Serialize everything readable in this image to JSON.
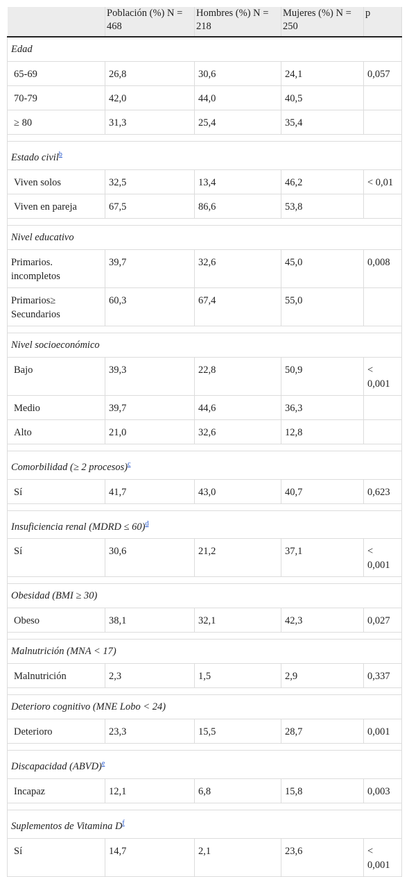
{
  "headers": [
    "",
    "Población (%) N = 468",
    "Hombres (%) N = 218",
    "Mujeres (%) N = 250",
    "p"
  ],
  "groups": [
    {
      "title": "Edad",
      "sup": "",
      "rows": [
        {
          "label": "65-69",
          "values": [
            "26,8",
            "30,6",
            "24,1",
            "0,057"
          ]
        },
        {
          "label": "70-79",
          "values": [
            "42,0",
            "44,0",
            "40,5",
            ""
          ]
        },
        {
          "label": "≥ 80",
          "values": [
            "31,3",
            "25,4",
            "35,4",
            ""
          ]
        }
      ]
    },
    {
      "title": "Estado civil",
      "sup": "b",
      "rows": [
        {
          "label": "Viven solos",
          "values": [
            "32,5",
            "13,4",
            "46,2",
            "< 0,01"
          ]
        },
        {
          "label": "Viven en pareja",
          "values": [
            "67,5",
            "86,6",
            "53,8",
            ""
          ]
        }
      ]
    },
    {
      "title": "Nivel educativo",
      "sup": "",
      "rows": [
        {
          "label": "Primarios. incompletos",
          "values": [
            "39,7",
            "32,6",
            "45,0",
            "0,008"
          ]
        },
        {
          "label": "Primarios≥ Secundarios",
          "values": [
            "60,3",
            "67,4",
            "55,0",
            ""
          ]
        }
      ]
    },
    {
      "title": "Nivel socioeconómico",
      "sup": "",
      "rows": [
        {
          "label": "Bajo",
          "values": [
            "39,3",
            "22,8",
            "50,9",
            "< 0,001"
          ]
        },
        {
          "label": "Medio",
          "values": [
            "39,7",
            "44,6",
            "36,3",
            ""
          ]
        },
        {
          "label": "Alto",
          "values": [
            "21,0",
            "32,6",
            "12,8",
            ""
          ]
        }
      ]
    },
    {
      "title": "Comorbilidad (≥ 2 procesos)",
      "sup": "c",
      "rows": [
        {
          "label": "Sí",
          "values": [
            "41,7",
            "43,0",
            "40,7",
            "0,623"
          ]
        }
      ]
    },
    {
      "title": "Insuficiencia renal (MDRD ≤ 60)",
      "sup": "d",
      "rows": [
        {
          "label": "Sí",
          "values": [
            "30,6",
            "21,2",
            "37,1",
            "< 0,001"
          ]
        }
      ]
    },
    {
      "title": "Obesidad (BMI ≥ 30)",
      "sup": "",
      "rows": [
        {
          "label": "Obeso",
          "values": [
            "38,1",
            "32,1",
            "42,3",
            "0,027"
          ]
        }
      ]
    },
    {
      "title": "Malnutrición (MNA < 17)",
      "sup": "",
      "rows": [
        {
          "label": "Malnutrición",
          "values": [
            "2,3",
            "1,5",
            "2,9",
            "0,337"
          ]
        }
      ]
    },
    {
      "title": "Deterioro cognitivo (MNE Lobo < 24)",
      "sup": "",
      "rows": [
        {
          "label": "Deterioro",
          "values": [
            "23,3",
            "15,5",
            "28,7",
            "0,001"
          ]
        }
      ]
    },
    {
      "title": "Discapacidad (ABVD)",
      "sup": "e",
      "rows": [
        {
          "label": "Incapaz",
          "values": [
            "12,1",
            "6,8",
            "15,8",
            "0,003"
          ]
        }
      ]
    },
    {
      "title": "Suplementos de Vitamina D",
      "sup": "f",
      "rows": [
        {
          "label": "Sí",
          "values": [
            "14,7",
            "2,1",
            "23,6",
            "< 0,001"
          ]
        }
      ]
    }
  ]
}
